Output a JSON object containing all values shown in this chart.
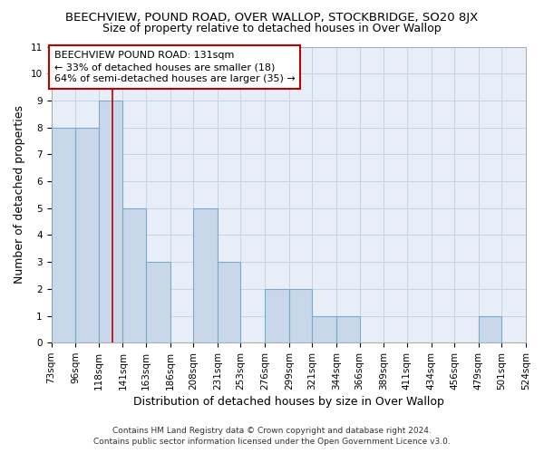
{
  "title": "BEECHVIEW, POUND ROAD, OVER WALLOP, STOCKBRIDGE, SO20 8JX",
  "subtitle": "Size of property relative to detached houses in Over Wallop",
  "xlabel": "Distribution of detached houses by size in Over Wallop",
  "ylabel": "Number of detached properties",
  "footnote1": "Contains HM Land Registry data © Crown copyright and database right 2024.",
  "footnote2": "Contains public sector information licensed under the Open Government Licence v3.0.",
  "bin_edges": [
    73,
    96,
    118,
    141,
    163,
    186,
    208,
    231,
    253,
    276,
    299,
    321,
    344,
    366,
    389,
    411,
    434,
    456,
    479,
    501,
    524
  ],
  "bin_labels": [
    "73sqm",
    "96sqm",
    "118sqm",
    "141sqm",
    "163sqm",
    "186sqm",
    "208sqm",
    "231sqm",
    "253sqm",
    "276sqm",
    "299sqm",
    "321sqm",
    "344sqm",
    "366sqm",
    "389sqm",
    "411sqm",
    "434sqm",
    "456sqm",
    "479sqm",
    "501sqm",
    "524sqm"
  ],
  "counts": [
    8,
    8,
    9,
    5,
    3,
    0,
    5,
    3,
    0,
    2,
    2,
    1,
    1,
    0,
    0,
    0,
    0,
    0,
    1,
    0
  ],
  "bar_color": "#c8d8ea",
  "bar_edge_color": "#7aaac8",
  "vline_x": 131,
  "vline_color": "#bb0000",
  "annotation_line1": "BEECHVIEW POUND ROAD: 131sqm",
  "annotation_line2": "← 33% of detached houses are smaller (18)",
  "annotation_line3": "64% of semi-detached houses are larger (35) →",
  "annotation_box_color": "white",
  "annotation_box_edge_color": "#bb0000",
  "ylim": [
    0,
    11
  ],
  "yticks": [
    0,
    1,
    2,
    3,
    4,
    5,
    6,
    7,
    8,
    9,
    10,
    11
  ],
  "grid_color": "#c8d4e4",
  "background_color": "#e8eef8",
  "title_fontsize": 9.5,
  "subtitle_fontsize": 9,
  "axis_label_fontsize": 9,
  "tick_fontsize": 7.5,
  "annotation_fontsize": 8,
  "footnote_fontsize": 6.5
}
